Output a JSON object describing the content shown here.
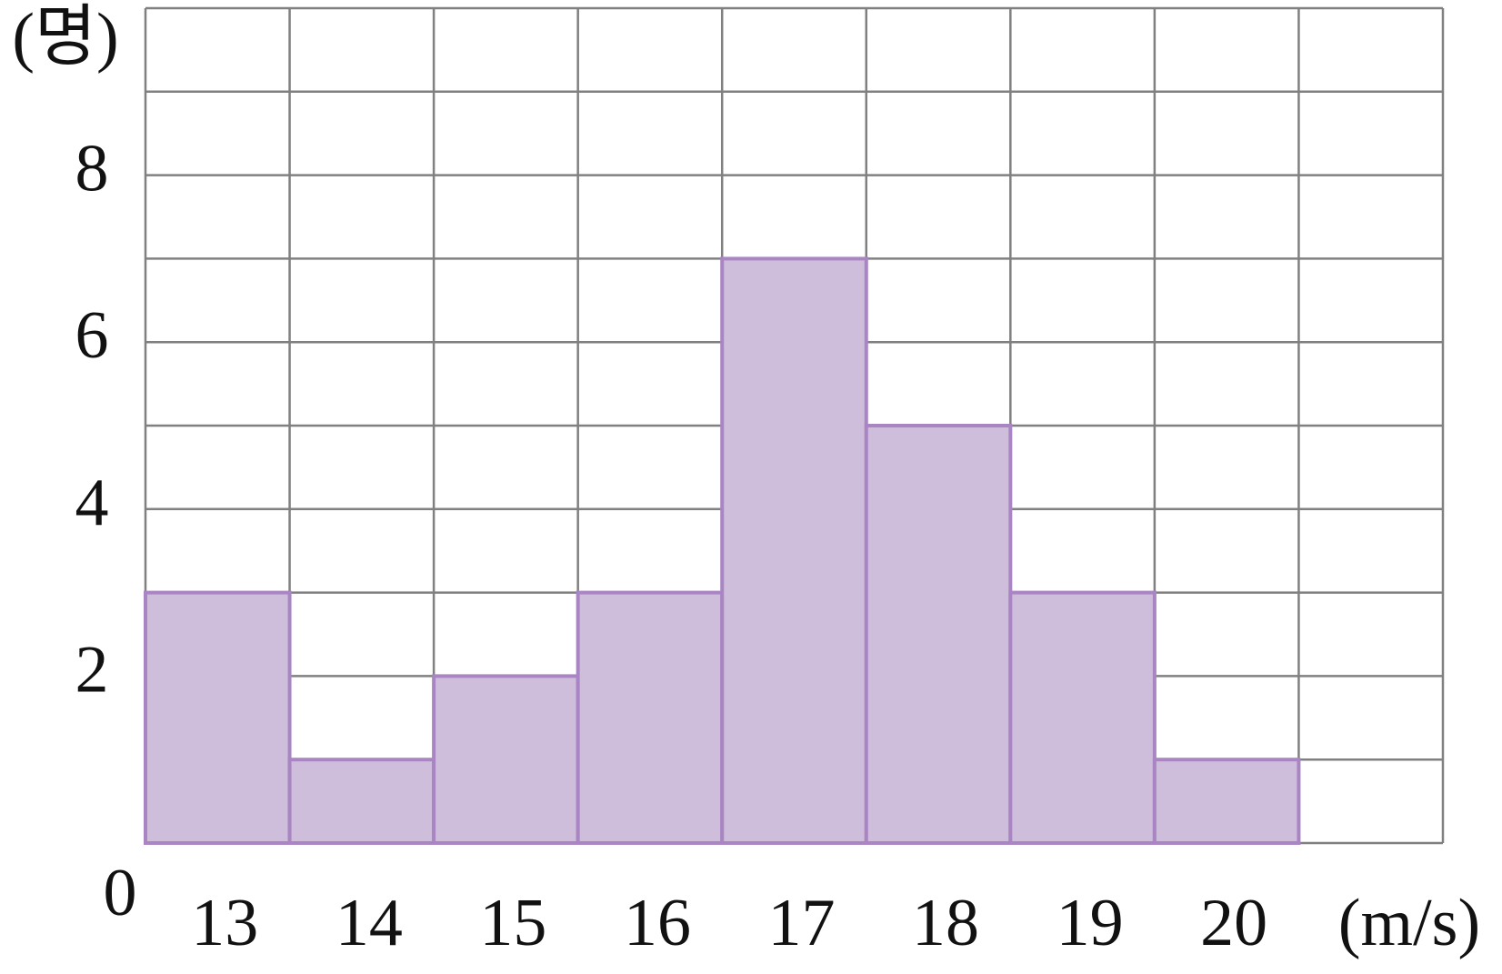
{
  "chart_data": {
    "type": "bar",
    "y_label": "(명)",
    "x_label": "(m/s)",
    "categories": [
      "13",
      "14",
      "15",
      "16",
      "17",
      "18",
      "19",
      "20"
    ],
    "values": [
      3,
      1,
      2,
      3,
      7,
      5,
      3,
      1
    ],
    "color": "#cfbedb",
    "edge_color": "#a986c3",
    "ylim": [
      0,
      10
    ],
    "yticks": [
      0,
      2,
      4,
      6,
      8
    ],
    "minor_yticks": [
      1,
      3,
      5,
      7,
      9,
      10
    ],
    "grid": true
  }
}
